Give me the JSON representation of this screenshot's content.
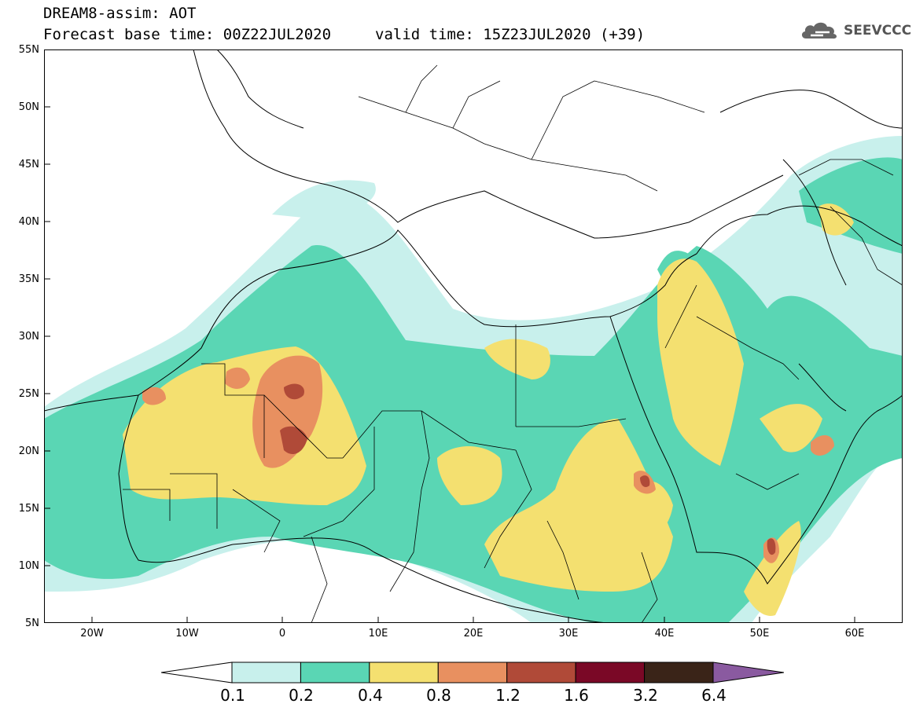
{
  "header": {
    "line1": "DREAM8-assim: AOT",
    "line2_left": "Forecast base time: 00Z22JUL2020",
    "line2_right": "valid time: 15Z23JUL2020 (+39)",
    "logo_text": "SEEVCCC"
  },
  "axes": {
    "lat_labels": [
      "55N",
      "50N",
      "45N",
      "40N",
      "35N",
      "30N",
      "25N",
      "20N",
      "15N",
      "10N",
      "5N"
    ],
    "lon_labels": [
      "20W",
      "10W",
      "0",
      "10E",
      "20E",
      "30E",
      "40E",
      "50E",
      "60E"
    ],
    "lon_range": [
      -25,
      65
    ],
    "lat_range": [
      5,
      55
    ]
  },
  "colorbar": {
    "labels": [
      "0.1",
      "0.2",
      "0.4",
      "0.8",
      "1.2",
      "1.6",
      "3.2",
      "6.4"
    ],
    "colors": [
      "#ffffff",
      "#c8f0ec",
      "#5ad6b4",
      "#f4e070",
      "#e89060",
      "#b04a38",
      "#7a0826",
      "#3a2418",
      "#8a5aa0"
    ]
  }
}
